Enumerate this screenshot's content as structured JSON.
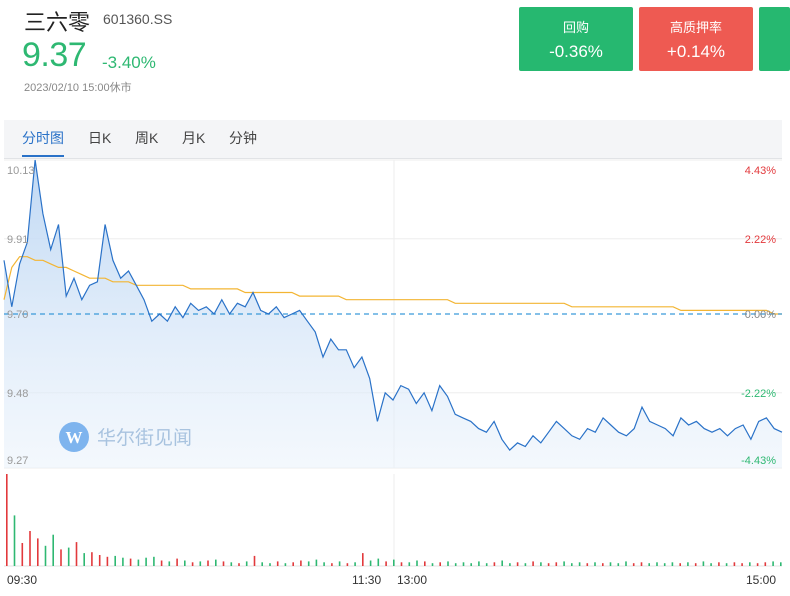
{
  "header": {
    "name": "三六零",
    "code": "601360.SS",
    "price": "9.37",
    "change_pct": "-3.40%",
    "timestamp": "2023/02/10 15:00休市"
  },
  "badges": [
    {
      "label": "回购",
      "value": "-0.36%",
      "color": "#26b870"
    },
    {
      "label": "高质押率",
      "value": "+0.14%",
      "color": "#ee5a52"
    }
  ],
  "tabs": [
    "分时图",
    "日K",
    "周K",
    "月K",
    "分钟"
  ],
  "active_tab": 0,
  "watermark": "华尔街见闻",
  "colors": {
    "up": "#e2393c",
    "down": "#2eb872",
    "line": "#2a72c8",
    "avg": "#f3b533"
  },
  "chart_data": {
    "type": "line",
    "x_tick_labels": [
      "09:30",
      "11:30",
      "13:00",
      "15:00"
    ],
    "y_tick_labels": [
      "10.13",
      "9.91",
      "9.70",
      "9.48",
      "9.27"
    ],
    "right_tick_labels": [
      "4.43%",
      "2.22%",
      "0.00%",
      "-2.22%",
      "-4.43%"
    ],
    "ylim": [
      9.27,
      10.13
    ],
    "prev_close": 9.7,
    "price_series": [
      9.85,
      9.72,
      9.84,
      9.9,
      10.13,
      9.98,
      9.88,
      9.95,
      9.75,
      9.8,
      9.74,
      9.78,
      9.79,
      9.95,
      9.85,
      9.8,
      9.82,
      9.78,
      9.74,
      9.68,
      9.7,
      9.68,
      9.72,
      9.69,
      9.73,
      9.71,
      9.72,
      9.7,
      9.74,
      9.7,
      9.73,
      9.72,
      9.76,
      9.71,
      9.7,
      9.72,
      9.69,
      9.7,
      9.71,
      9.68,
      9.65,
      9.58,
      9.63,
      9.6,
      9.6,
      9.55,
      9.58,
      9.52,
      9.4,
      9.48,
      9.46,
      9.5,
      9.49,
      9.45,
      9.48,
      9.43,
      9.5,
      9.47,
      9.42,
      9.41,
      9.4,
      9.38,
      9.37,
      9.4,
      9.35,
      9.32,
      9.34,
      9.33,
      9.36,
      9.34,
      9.37,
      9.4,
      9.38,
      9.36,
      9.35,
      9.38,
      9.37,
      9.41,
      9.39,
      9.37,
      9.36,
      9.38,
      9.44,
      9.4,
      9.39,
      9.38,
      9.36,
      9.41,
      9.39,
      9.4,
      9.38,
      9.37,
      9.38,
      9.36,
      9.38,
      9.39,
      9.35,
      9.4,
      9.41,
      9.38,
      9.37
    ],
    "avg_series": [
      9.74,
      9.83,
      9.86,
      9.86,
      9.85,
      9.85,
      9.84,
      9.83,
      9.83,
      9.82,
      9.81,
      9.8,
      9.8,
      9.8,
      9.79,
      9.79,
      9.79,
      9.78,
      9.78,
      9.78,
      9.78,
      9.78,
      9.78,
      9.78,
      9.77,
      9.77,
      9.77,
      9.77,
      9.77,
      9.77,
      9.77,
      9.76,
      9.76,
      9.76,
      9.76,
      9.76,
      9.76,
      9.76,
      9.75,
      9.75,
      9.75,
      9.75,
      9.75,
      9.75,
      9.74,
      9.74,
      9.74,
      9.74,
      9.74,
      9.74,
      9.74,
      9.74,
      9.74,
      9.74,
      9.74,
      9.74,
      9.74,
      9.74,
      9.73,
      9.73,
      9.73,
      9.73,
      9.73,
      9.73,
      9.73,
      9.73,
      9.73,
      9.73,
      9.73,
      9.73,
      9.73,
      9.73,
      9.73,
      9.72,
      9.72,
      9.72,
      9.72,
      9.72,
      9.72,
      9.72,
      9.72,
      9.72,
      9.72,
      9.72,
      9.72,
      9.72,
      9.72,
      9.71,
      9.71,
      9.71,
      9.71,
      9.71,
      9.71,
      9.71,
      9.71,
      9.71,
      9.71,
      9.71,
      9.71,
      9.7,
      9.7
    ],
    "volume_series": [
      100,
      55,
      25,
      38,
      30,
      22,
      34,
      18,
      20,
      26,
      14,
      15,
      12,
      10,
      11,
      9,
      8,
      7,
      9,
      10,
      6,
      5,
      8,
      6,
      4,
      5,
      6,
      7,
      5,
      4,
      3,
      5,
      11,
      4,
      3,
      5,
      3,
      4,
      6,
      5,
      7,
      4,
      3,
      5,
      3,
      4,
      14,
      6,
      8,
      5,
      7,
      4,
      4,
      6,
      5,
      3,
      4,
      5,
      3,
      4,
      3,
      5,
      3,
      4,
      6,
      3,
      4,
      3,
      5,
      4,
      3,
      4,
      5,
      3,
      4,
      3,
      4,
      3,
      4,
      3,
      5,
      3,
      4,
      3,
      4,
      3,
      4,
      3,
      4,
      3,
      5,
      3,
      4,
      3,
      4,
      3,
      4,
      3,
      4,
      5,
      4
    ]
  }
}
